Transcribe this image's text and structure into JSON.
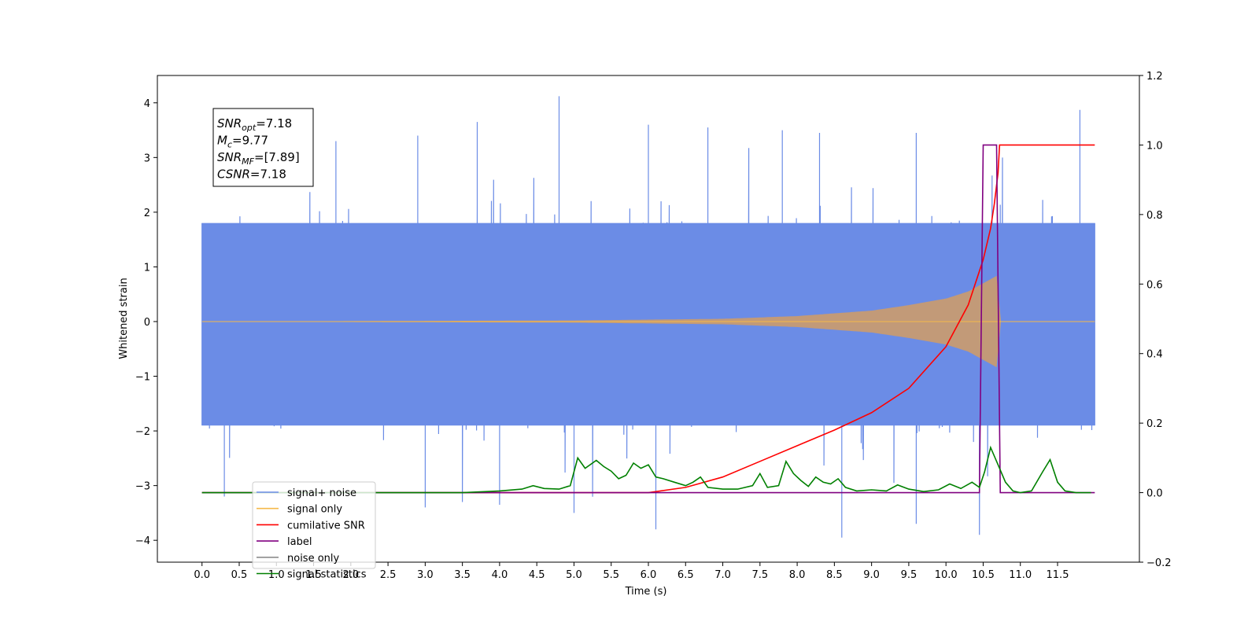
{
  "chart_data": {
    "type": "line",
    "title": "",
    "xlabel": "Time (s)",
    "ylabel": "Whitened strain",
    "xlim": [
      -0.6,
      12.6
    ],
    "ylim": [
      -4.4,
      4.5
    ],
    "ylim_right": [
      -0.2,
      1.2
    ],
    "x_ticks": [
      0.0,
      0.5,
      1.0,
      1.5,
      2.0,
      2.5,
      3.0,
      3.5,
      4.0,
      4.5,
      5.0,
      5.5,
      6.0,
      6.5,
      7.0,
      7.5,
      8.0,
      8.5,
      9.0,
      9.5,
      10.0,
      10.5,
      11.0,
      11.5
    ],
    "x_tick_labels": [
      "0.0",
      "0.5",
      "1.0",
      "1.5",
      "2.0",
      "2.5",
      "3.0",
      "3.5",
      "4.0",
      "4.5",
      "5.0",
      "5.5",
      "6.0",
      "6.5",
      "7.0",
      "7.5",
      "8.0",
      "8.5",
      "9.0",
      "9.5",
      "10.0",
      "10.5",
      "11.0",
      "11.5"
    ],
    "y_ticks": [
      -4,
      -3,
      -2,
      -1,
      0,
      1,
      2,
      3,
      4
    ],
    "y_tick_labels": [
      "−4",
      "−3",
      "−2",
      "−1",
      "0",
      "1",
      "2",
      "3",
      "4"
    ],
    "y_ticks_right": [
      -0.2,
      0.0,
      0.2,
      0.4,
      0.6,
      0.8,
      1.0,
      1.2
    ],
    "y_tick_labels_right": [
      "−0.2",
      "0.0",
      "0.2",
      "0.4",
      "0.6",
      "0.8",
      "1.0",
      "1.2"
    ],
    "grid": false,
    "legend_position": "lower-left",
    "series": [
      {
        "name": "signal+ noise",
        "axis": "left",
        "color": "#6b8ce6",
        "t_range": [
          0.0,
          12.0
        ],
        "envelope": {
          "core_upper": 1.8,
          "core_lower": -1.9,
          "spike_max": 4.1,
          "spike_min": -3.9
        },
        "peaks": [
          {
            "x": 4.8,
            "y": 4.12
          },
          {
            "x": 11.8,
            "y": 3.87
          },
          {
            "x": 3.7,
            "y": 3.65
          },
          {
            "x": 6.0,
            "y": 3.6
          },
          {
            "x": 6.8,
            "y": 3.55
          },
          {
            "x": 7.8,
            "y": 3.5
          },
          {
            "x": 8.3,
            "y": 3.45
          },
          {
            "x": 9.6,
            "y": 3.45
          },
          {
            "x": 2.9,
            "y": 3.4
          },
          {
            "x": 1.8,
            "y": 3.3
          },
          {
            "x": 6.1,
            "y": -3.8
          },
          {
            "x": 8.6,
            "y": -3.95
          },
          {
            "x": 4.0,
            "y": -3.35
          },
          {
            "x": 3.0,
            "y": -3.4
          },
          {
            "x": 9.6,
            "y": -3.7
          },
          {
            "x": 5.0,
            "y": -3.5
          },
          {
            "x": 0.3,
            "y": -3.2
          }
        ]
      },
      {
        "name": "signal only",
        "axis": "left",
        "color": "#f5b94a",
        "t_range": [
          0.0,
          12.0
        ],
        "envelope_points": [
          [
            0.0,
            0.0
          ],
          [
            5.0,
            0.02
          ],
          [
            7.0,
            0.05
          ],
          [
            8.0,
            0.1
          ],
          [
            9.0,
            0.2
          ],
          [
            9.5,
            0.3
          ],
          [
            10.0,
            0.42
          ],
          [
            10.3,
            0.55
          ],
          [
            10.5,
            0.7
          ],
          [
            10.7,
            0.85
          ],
          [
            10.72,
            0.0
          ],
          [
            12.0,
            0.0
          ]
        ]
      },
      {
        "name": "cumilative SNR",
        "axis": "right",
        "color": "#ff0000",
        "points": [
          [
            0.0,
            0.0
          ],
          [
            6.0,
            0.0
          ],
          [
            6.5,
            0.015
          ],
          [
            7.0,
            0.045
          ],
          [
            7.5,
            0.09
          ],
          [
            8.0,
            0.135
          ],
          [
            8.5,
            0.18
          ],
          [
            9.0,
            0.23
          ],
          [
            9.5,
            0.3
          ],
          [
            10.0,
            0.42
          ],
          [
            10.3,
            0.54
          ],
          [
            10.5,
            0.67
          ],
          [
            10.6,
            0.76
          ],
          [
            10.65,
            0.83
          ],
          [
            10.7,
            0.92
          ],
          [
            10.72,
            1.0
          ],
          [
            12.0,
            1.0
          ]
        ]
      },
      {
        "name": "label",
        "axis": "right",
        "color": "#800080",
        "points": [
          [
            0.0,
            0.0
          ],
          [
            10.45,
            0.0
          ],
          [
            10.5,
            1.0
          ],
          [
            10.68,
            1.0
          ],
          [
            10.73,
            0.0
          ],
          [
            12.0,
            0.0
          ]
        ]
      },
      {
        "name": "noise only",
        "axis": "left",
        "color": "#8c8c8c",
        "legend_only": true
      },
      {
        "name": "signal statistics",
        "axis": "right",
        "color": "#008000",
        "points": [
          [
            0.0,
            0.0
          ],
          [
            3.5,
            0.0
          ],
          [
            4.0,
            0.005
          ],
          [
            4.3,
            0.01
          ],
          [
            4.45,
            0.02
          ],
          [
            4.6,
            0.012
          ],
          [
            4.8,
            0.01
          ],
          [
            4.95,
            0.02
          ],
          [
            5.05,
            0.1
          ],
          [
            5.15,
            0.07
          ],
          [
            5.3,
            0.093
          ],
          [
            5.4,
            0.075
          ],
          [
            5.5,
            0.062
          ],
          [
            5.6,
            0.04
          ],
          [
            5.7,
            0.05
          ],
          [
            5.8,
            0.085
          ],
          [
            5.9,
            0.07
          ],
          [
            6.0,
            0.08
          ],
          [
            6.1,
            0.045
          ],
          [
            6.2,
            0.04
          ],
          [
            6.35,
            0.03
          ],
          [
            6.5,
            0.02
          ],
          [
            6.6,
            0.03
          ],
          [
            6.7,
            0.045
          ],
          [
            6.8,
            0.015
          ],
          [
            7.0,
            0.01
          ],
          [
            7.2,
            0.01
          ],
          [
            7.4,
            0.02
          ],
          [
            7.5,
            0.055
          ],
          [
            7.6,
            0.015
          ],
          [
            7.75,
            0.02
          ],
          [
            7.85,
            0.09
          ],
          [
            7.95,
            0.055
          ],
          [
            8.05,
            0.035
          ],
          [
            8.15,
            0.018
          ],
          [
            8.25,
            0.045
          ],
          [
            8.35,
            0.03
          ],
          [
            8.45,
            0.025
          ],
          [
            8.55,
            0.04
          ],
          [
            8.65,
            0.015
          ],
          [
            8.8,
            0.005
          ],
          [
            9.0,
            0.008
          ],
          [
            9.2,
            0.005
          ],
          [
            9.35,
            0.022
          ],
          [
            9.5,
            0.01
          ],
          [
            9.7,
            0.003
          ],
          [
            9.9,
            0.008
          ],
          [
            10.05,
            0.025
          ],
          [
            10.2,
            0.012
          ],
          [
            10.35,
            0.03
          ],
          [
            10.45,
            0.015
          ],
          [
            10.52,
            0.06
          ],
          [
            10.6,
            0.13
          ],
          [
            10.7,
            0.08
          ],
          [
            10.8,
            0.03
          ],
          [
            10.9,
            0.005
          ],
          [
            11.0,
            0.0
          ],
          [
            11.15,
            0.005
          ],
          [
            11.3,
            0.06
          ],
          [
            11.4,
            0.095
          ],
          [
            11.5,
            0.03
          ],
          [
            11.6,
            0.005
          ],
          [
            11.75,
            0.0
          ],
          [
            11.95,
            0.0
          ]
        ]
      }
    ],
    "annotation": [
      {
        "base": "SNR",
        "sub": "opt",
        "value": "=7.18"
      },
      {
        "base": "M",
        "sub": "c",
        "value": "=9.77"
      },
      {
        "base": "SNR",
        "sub": "MF",
        "value": "=[7.89]"
      },
      {
        "base": "CSNR",
        "sub": "",
        "value": "=7.18"
      }
    ]
  }
}
